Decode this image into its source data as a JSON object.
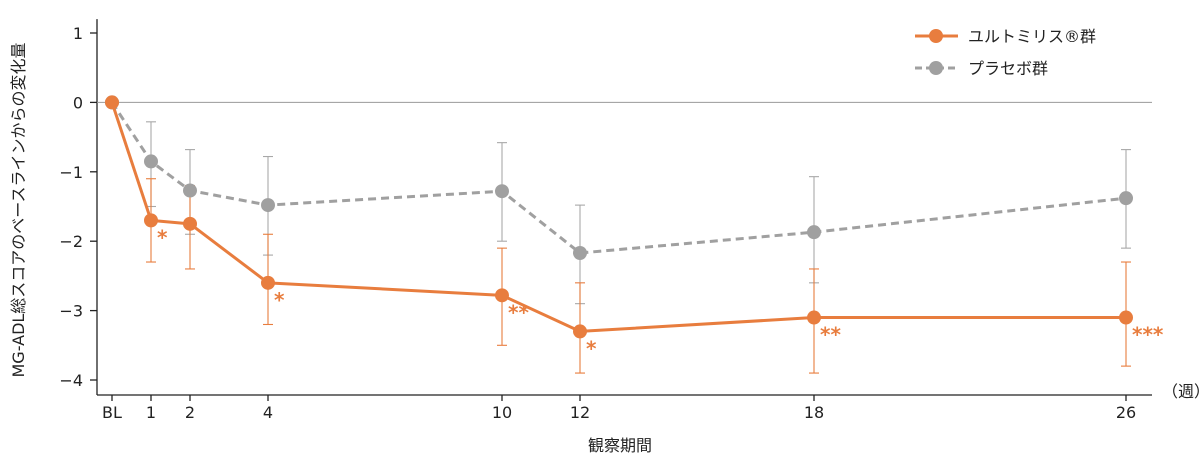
{
  "chart_data": {
    "type": "line",
    "xlabel": "観察期間",
    "ylabel": "MG-ADL総スコアのベースラインからの変化量",
    "x_unit": "（週）",
    "categories": [
      "BL",
      "1",
      "2",
      "4",
      "10",
      "12",
      "18",
      "26"
    ],
    "x": [
      0,
      1,
      2,
      4,
      10,
      12,
      18,
      26
    ],
    "y_ticks": [
      1,
      0,
      -1,
      -2,
      -3,
      -4
    ],
    "y_tick_labels": [
      "1",
      "0",
      "−1",
      "−2",
      "−3",
      "−4"
    ],
    "ylim": [
      -4.2,
      1.2
    ],
    "grid": false,
    "reference_line": 0,
    "legend_position": "top-right",
    "series": [
      {
        "name": "ユルトミリス®群",
        "style": "solid",
        "color": "#E87D3E",
        "values": [
          0,
          -1.7,
          -1.75,
          -2.6,
          -2.78,
          -3.3,
          -3.1,
          -3.1
        ],
        "error_low": [
          0,
          -2.3,
          -2.4,
          -3.2,
          -3.5,
          -3.9,
          -3.9,
          -3.8
        ],
        "error_high": [
          0,
          -1.1,
          -1.2,
          -1.9,
          -2.1,
          -2.6,
          -2.4,
          -2.3
        ],
        "significance": [
          "",
          "*",
          "",
          "*",
          "**",
          "*",
          "**",
          "***"
        ]
      },
      {
        "name": "プラセボ群",
        "style": "dashed",
        "color": "#A0A0A0",
        "values": [
          0,
          -0.85,
          -1.27,
          -1.48,
          -1.28,
          -2.17,
          -1.87,
          -1.38
        ],
        "error_low": [
          0,
          -1.5,
          -1.9,
          -2.2,
          -2.0,
          -2.9,
          -2.6,
          -2.1
        ],
        "error_high": [
          0,
          -0.28,
          -0.68,
          -0.78,
          -0.58,
          -1.48,
          -1.07,
          -0.68
        ]
      }
    ]
  }
}
